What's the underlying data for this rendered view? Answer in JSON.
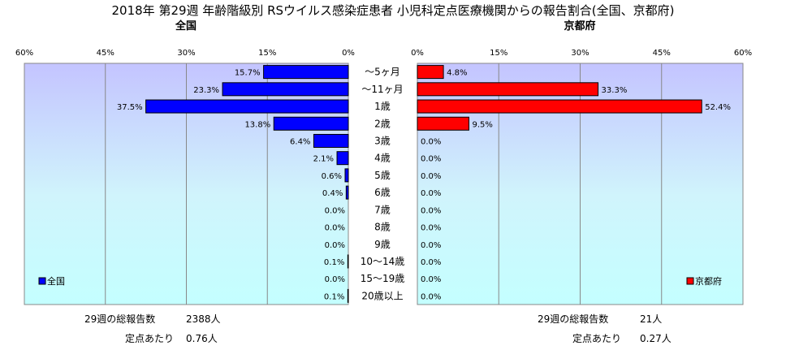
{
  "title": "2018年 第29週 年齢階級別 RSウイルス感染症患者 小児科定点医療機関からの報告割合(全国、京都府)",
  "categories": [
    "～5ヶ月",
    "～11ヶ月",
    "1歳",
    "2歳",
    "3歳",
    "4歳",
    "5歳",
    "6歳",
    "7歳",
    "8歳",
    "9歳",
    "10～14歳",
    "15～19歳",
    "20歳以上"
  ],
  "chart_data": [
    {
      "type": "bar",
      "title": "全国",
      "orientation": "horizontal",
      "direction": "leftward",
      "categories": [
        "～5ヶ月",
        "～11ヶ月",
        "1歳",
        "2歳",
        "3歳",
        "4歳",
        "5歳",
        "6歳",
        "7歳",
        "8歳",
        "9歳",
        "10～14歳",
        "15～19歳",
        "20歳以上"
      ],
      "series": [
        {
          "name": "全国",
          "color": "#0000ff",
          "values": [
            15.7,
            23.3,
            37.5,
            13.8,
            6.4,
            2.1,
            0.6,
            0.4,
            0.0,
            0.0,
            0.0,
            0.1,
            0.0,
            0.1
          ],
          "labels": [
            "15.7%",
            "23.3%",
            "37.5%",
            "13.8%",
            "6.4%",
            "2.1%",
            "0.6%",
            "0.4%",
            "0.0%",
            "0.0%",
            "0.0%",
            "0.1%",
            "0.0%",
            "0.1%"
          ]
        }
      ],
      "xlim": [
        0,
        60
      ],
      "ticks": [
        "60%",
        "45%",
        "30%",
        "15%",
        "0%"
      ],
      "legend": "bottom-left",
      "grid": true
    },
    {
      "type": "bar",
      "title": "京都府",
      "orientation": "horizontal",
      "direction": "rightward",
      "categories": [
        "～5ヶ月",
        "～11ヶ月",
        "1歳",
        "2歳",
        "3歳",
        "4歳",
        "5歳",
        "6歳",
        "7歳",
        "8歳",
        "9歳",
        "10～14歳",
        "15～19歳",
        "20歳以上"
      ],
      "series": [
        {
          "name": "京都府",
          "color": "#ff0000",
          "values": [
            4.8,
            33.3,
            52.4,
            9.5,
            0.0,
            0.0,
            0.0,
            0.0,
            0.0,
            0.0,
            0.0,
            0.0,
            0.0,
            0.0
          ],
          "labels": [
            "4.8%",
            "33.3%",
            "52.4%",
            "9.5%",
            "0.0%",
            "0.0%",
            "0.0%",
            "0.0%",
            "0.0%",
            "0.0%",
            "0.0%",
            "0.0%",
            "0.0%",
            "0.0%"
          ]
        }
      ],
      "xlim": [
        0,
        60
      ],
      "ticks": [
        "0%",
        "15%",
        "30%",
        "45%",
        "60%"
      ],
      "legend": "bottom-right",
      "grid": true
    }
  ],
  "footer": {
    "left": {
      "reports_label": "29週の総報告数",
      "reports_value": "2388人",
      "per_label": "定点あたり",
      "per_value": "0.76人"
    },
    "right": {
      "reports_label": "29週の総報告数",
      "reports_value": "21人",
      "per_label": "定点あたり",
      "per_value": "0.27人"
    }
  }
}
